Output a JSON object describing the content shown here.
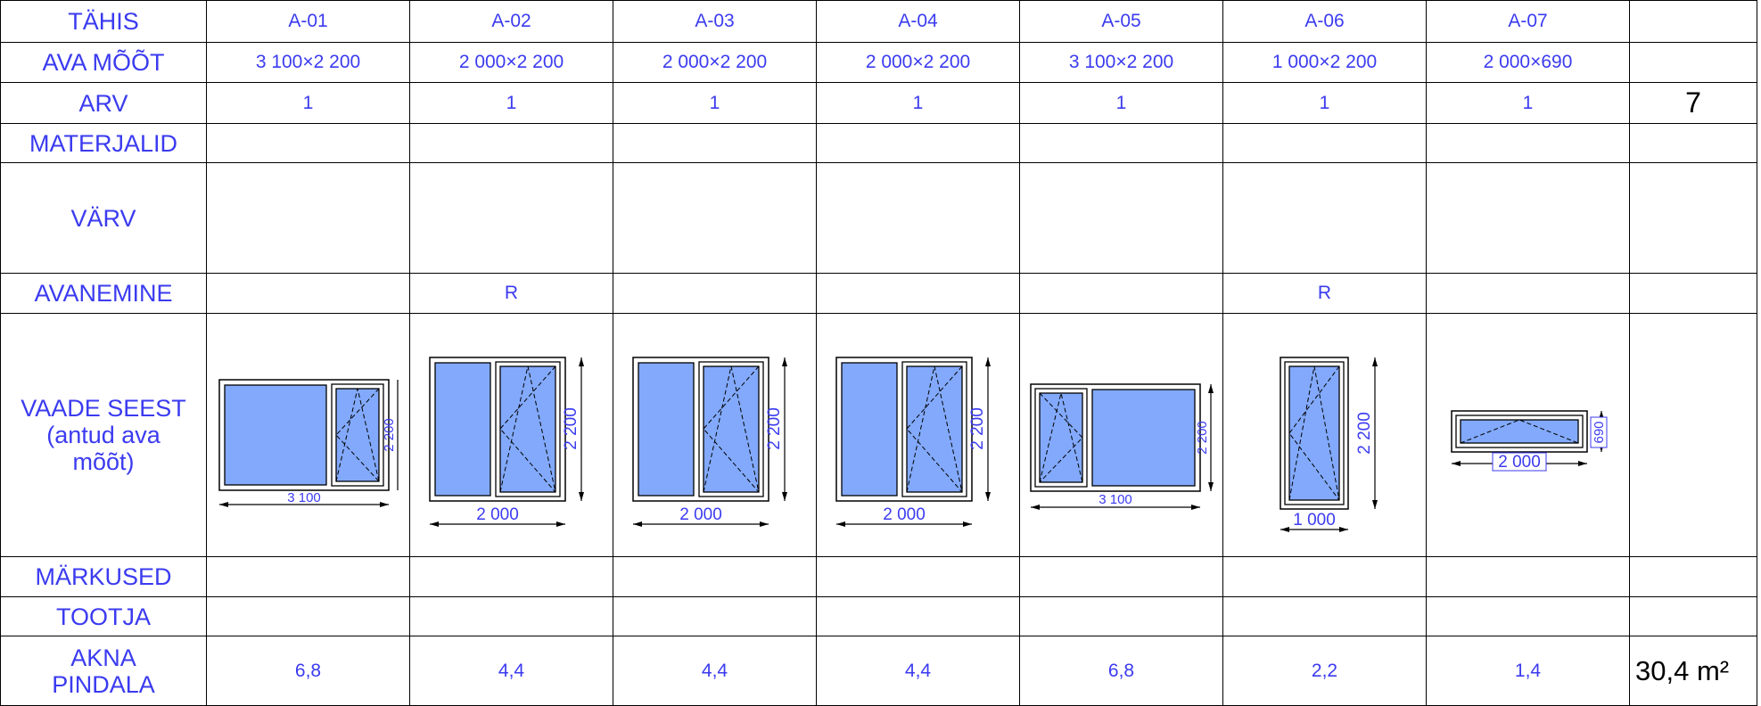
{
  "rows": {
    "tahis": "TÄHIS",
    "ava_moot": "AVA MÕÕT",
    "arv": "ARV",
    "materjalid": "MATERJALID",
    "varv": "VÄRV",
    "avanemine": "AVANEMINE",
    "vaade": "VAADE SEEST (antud ava mõõt)",
    "markused": "MÄRKUSED",
    "tootja": "TOOTJA",
    "akna_pindala": "AKNA PINDALA"
  },
  "windows": [
    {
      "id": "A-01",
      "size": "3 100×2 200",
      "count": "1",
      "opening": "",
      "area": "6,8",
      "dim_w": "3 100",
      "dim_h": "2 200"
    },
    {
      "id": "A-02",
      "size": "2 000×2 200",
      "count": "1",
      "opening": "R",
      "area": "4,4",
      "dim_w": "2 000",
      "dim_h": "2 200"
    },
    {
      "id": "A-03",
      "size": "2 000×2 200",
      "count": "1",
      "opening": "",
      "area": "4,4",
      "dim_w": "2 000",
      "dim_h": "2 200"
    },
    {
      "id": "A-04",
      "size": "2 000×2 200",
      "count": "1",
      "opening": "",
      "area": "4,4",
      "dim_w": "2 000",
      "dim_h": "2 200"
    },
    {
      "id": "A-05",
      "size": "3 100×2 200",
      "count": "1",
      "opening": "",
      "area": "6,8",
      "dim_w": "3 100",
      "dim_h": "2 200"
    },
    {
      "id": "A-06",
      "size": "1 000×2 200",
      "count": "1",
      "opening": "R",
      "area": "2,2",
      "dim_w": "1 000",
      "dim_h": "2 200"
    },
    {
      "id": "A-07",
      "size": "2 000×690",
      "count": "1",
      "opening": "",
      "area": "1,4",
      "dim_w": "2 000",
      "dim_h": "690"
    }
  ],
  "totals": {
    "count": "7",
    "area": "30,4 m²"
  },
  "colors": {
    "text": "#3b3bf0",
    "glass": "#82a9fb"
  }
}
